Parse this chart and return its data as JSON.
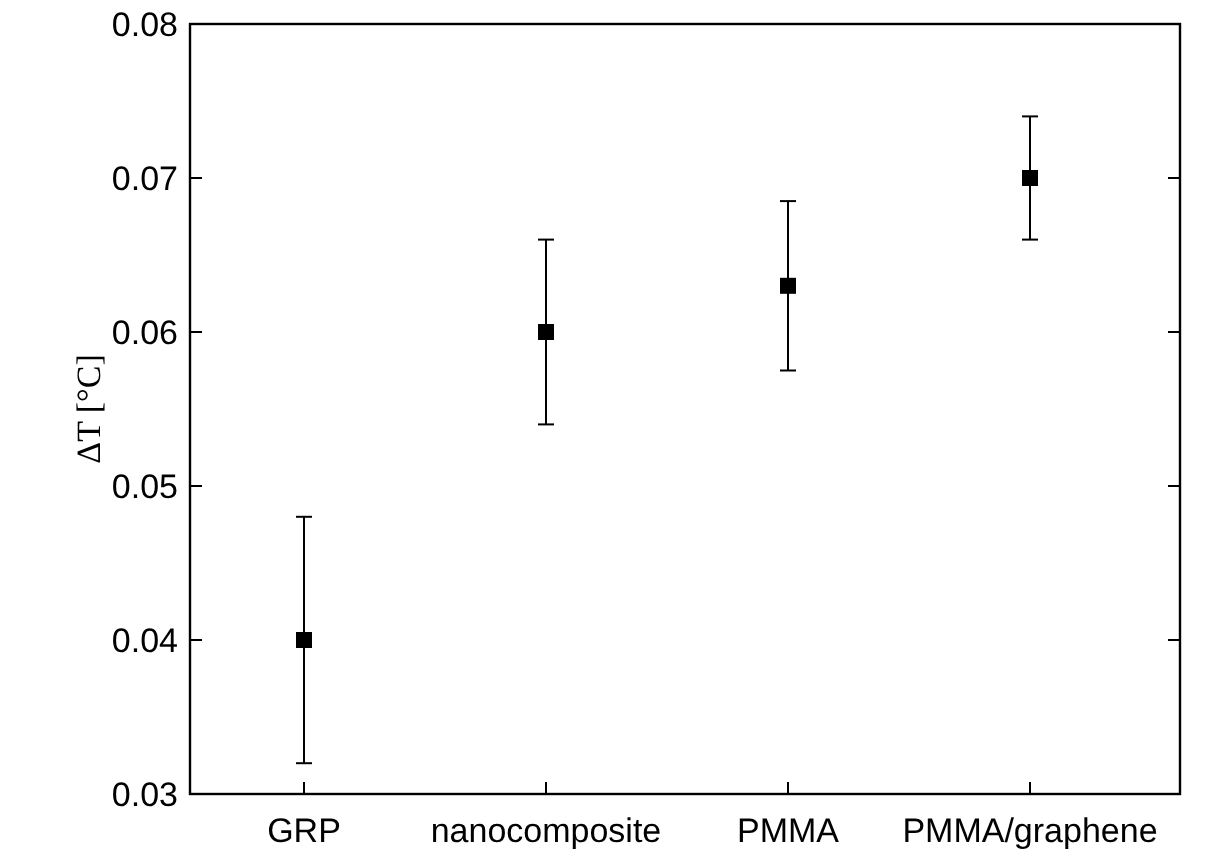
{
  "chart_data": {
    "type": "scatter",
    "ylabel": "ΔT [°C]",
    "categories": [
      "GRP",
      "nanocomposite",
      "PMMA",
      "PMMA/graphene"
    ],
    "values": [
      0.04,
      0.06,
      0.063,
      0.07
    ],
    "errors": [
      [
        0.032,
        0.048
      ],
      [
        0.054,
        0.066
      ],
      [
        0.0575,
        0.0685
      ],
      [
        0.066,
        0.074
      ]
    ],
    "color": "#000000",
    "marker": "square",
    "ylim": [
      0.03,
      0.08
    ],
    "yticks": [
      {
        "value": 0.03,
        "label": "0.03"
      },
      {
        "value": 0.04,
        "label": "0.04"
      },
      {
        "value": 0.05,
        "label": "0.05"
      },
      {
        "value": 0.06,
        "label": "0.06"
      },
      {
        "value": 0.07,
        "label": "0.07"
      },
      {
        "value": 0.08,
        "label": "0.08"
      }
    ]
  }
}
